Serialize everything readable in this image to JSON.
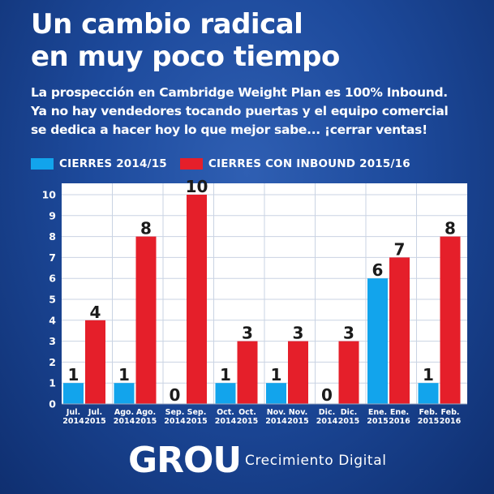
{
  "header": {
    "title_lines": [
      "Un cambio radical",
      "en muy poco tiempo"
    ],
    "subtitle_lines": [
      "La prospección en Cambridge Weight Plan es 100% Inbound.",
      "Ya no hay vendedores tocando puertas y el equipo comercial",
      "se dedica a hacer hoy lo que mejor sabe... ¡cerrar ventas!"
    ]
  },
  "colors": {
    "series_2014": "#12a4ec",
    "series_2015": "#e51f2a",
    "background": "#1d4a9c"
  },
  "chart_data": {
    "type": "bar",
    "ylim": [
      0,
      10
    ],
    "yticks": [
      0,
      1,
      2,
      3,
      4,
      5,
      6,
      7,
      8,
      9,
      10
    ],
    "grid": true,
    "legend_position": "top-left",
    "series": [
      {
        "name": "CIERRES 2014/15",
        "color": "#12a4ec",
        "values": [
          1,
          1,
          0,
          1,
          1,
          0,
          6,
          1
        ]
      },
      {
        "name": "CIERRES CON INBOUND 2015/16",
        "color": "#e51f2a",
        "values": [
          4,
          8,
          10,
          3,
          3,
          3,
          7,
          8
        ]
      }
    ],
    "groups": [
      {
        "labels": [
          [
            "Jul.",
            "2014"
          ],
          [
            "Jul.",
            "2015"
          ]
        ]
      },
      {
        "labels": [
          [
            "Ago.",
            "2014"
          ],
          [
            "Ago.",
            "2015"
          ]
        ]
      },
      {
        "labels": [
          [
            "Sep.",
            "2014"
          ],
          [
            "Sep.",
            "2015"
          ]
        ]
      },
      {
        "labels": [
          [
            "Oct.",
            "2014"
          ],
          [
            "Oct.",
            "2015"
          ]
        ]
      },
      {
        "labels": [
          [
            "Nov.",
            "2014"
          ],
          [
            "Nov.",
            "2015"
          ]
        ]
      },
      {
        "labels": [
          [
            "Dic.",
            "2014"
          ],
          [
            "Dic.",
            "2015"
          ]
        ]
      },
      {
        "labels": [
          [
            "Ene.",
            "2015"
          ],
          [
            "Ene.",
            "2016"
          ]
        ]
      },
      {
        "labels": [
          [
            "Feb.",
            "2015"
          ],
          [
            "Feb.",
            "2016"
          ]
        ]
      }
    ]
  },
  "footer": {
    "logo_text": "GROU",
    "tagline": "Crecimiento Digital"
  }
}
